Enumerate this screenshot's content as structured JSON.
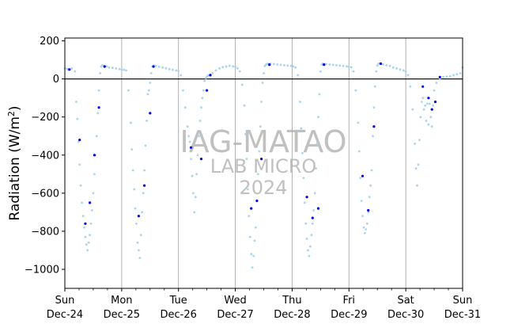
{
  "chart_data": {
    "type": "scatter",
    "title": "",
    "xlabel": "",
    "ylabel": "Radiation (W/m²)",
    "ylabel_base": "Radiation (W/m",
    "ylabel_sup": "2",
    "ylabel_end": ")",
    "x_ticks": [
      {
        "day": "Sun",
        "date": "Dec-24",
        "t": 0
      },
      {
        "day": "Mon",
        "date": "Dec-25",
        "t": 1
      },
      {
        "day": "Tue",
        "date": "Dec-26",
        "t": 2
      },
      {
        "day": "Wed",
        "date": "Dec-27",
        "t": 3
      },
      {
        "day": "Thu",
        "date": "Dec-28",
        "t": 4
      },
      {
        "day": "Fri",
        "date": "Dec-29",
        "t": 5
      },
      {
        "day": "Sat",
        "date": "Dec-30",
        "t": 6
      },
      {
        "day": "Sun",
        "date": "Dec-31",
        "t": 7
      }
    ],
    "xlim": [
      0,
      7
    ],
    "ylim": [
      -1100,
      215
    ],
    "y_ticks": [
      200,
      0,
      -200,
      -400,
      -600,
      -800,
      -1000
    ],
    "zero_line": 0,
    "grid": "vertical at day boundaries",
    "watermark": {
      "line1": "IAG-MATAO",
      "line2": "LAB MICRO",
      "line3": "2024"
    },
    "colors": {
      "minute_points": "#a8d4ec",
      "hourly_points": "#0000ee",
      "grid": "#b0b0b0",
      "zero_line": "#000000"
    },
    "series": [
      {
        "name": "",
        "style": "light",
        "x": [
          0.0,
          0.04,
          0.08,
          0.12,
          0.18,
          0.2,
          0.22,
          0.24,
          0.26,
          0.28,
          0.3,
          0.32,
          0.34,
          0.36,
          0.38,
          0.4,
          0.42,
          0.44,
          0.46,
          0.48,
          0.5,
          0.52,
          0.54,
          0.56,
          0.58,
          0.6,
          0.62,
          0.64,
          0.66,
          0.68,
          0.7,
          0.74,
          0.78,
          0.84,
          0.9,
          0.96,
          1.0,
          1.04,
          1.08,
          1.12,
          1.16,
          1.18,
          1.2,
          1.22,
          1.24,
          1.26,
          1.28,
          1.3,
          1.32,
          1.34,
          1.36,
          1.38,
          1.4,
          1.42,
          1.44,
          1.46,
          1.48,
          1.5,
          1.52,
          1.54,
          1.56,
          1.6,
          1.66,
          1.72,
          1.78,
          1.84,
          1.9,
          1.96,
          2.0,
          2.04,
          2.08,
          2.12,
          2.16,
          2.18,
          2.2,
          2.22,
          2.24,
          2.26,
          2.28,
          2.3,
          2.32,
          2.34,
          2.36,
          2.38,
          2.4,
          2.42,
          2.44,
          2.46,
          2.48,
          2.5,
          2.52,
          2.54,
          2.56,
          2.6,
          2.66,
          2.72,
          2.78,
          2.84,
          2.9,
          2.96,
          3.0,
          3.04,
          3.08,
          3.12,
          3.16,
          3.18,
          3.2,
          3.22,
          3.24,
          3.26,
          3.28,
          3.3,
          3.32,
          3.34,
          3.36,
          3.38,
          3.4,
          3.42,
          3.44,
          3.46,
          3.48,
          3.5,
          3.52,
          3.54,
          3.56,
          3.58,
          3.62,
          3.68,
          3.74,
          3.8,
          3.86,
          3.92,
          3.98,
          4.02,
          4.06,
          4.1,
          4.14,
          4.16,
          4.18,
          4.2,
          4.22,
          4.24,
          4.26,
          4.28,
          4.3,
          4.32,
          4.34,
          4.36,
          4.38,
          4.4,
          4.42,
          4.44,
          4.46,
          4.48,
          4.5,
          4.52,
          4.54,
          4.56,
          4.6,
          4.66,
          4.72,
          4.78,
          4.84,
          4.9,
          4.96,
          5.0,
          5.04,
          5.08,
          5.12,
          5.16,
          5.18,
          5.2,
          5.22,
          5.24,
          5.26,
          5.28,
          5.3,
          5.32,
          5.34,
          5.36,
          5.38,
          5.4,
          5.42,
          5.44,
          5.46,
          5.48,
          5.5,
          5.52,
          5.54,
          5.56,
          5.6,
          5.66,
          5.72,
          5.78,
          5.84,
          5.9,
          5.96,
          6.0,
          6.04,
          6.08,
          6.12,
          6.16,
          6.18,
          6.2,
          6.22,
          6.24,
          6.26,
          6.28,
          6.3,
          6.32,
          6.34,
          6.36,
          6.38,
          6.4,
          6.42,
          6.44,
          6.46,
          6.48,
          6.5,
          6.54,
          6.6,
          6.66,
          6.72,
          6.78,
          6.84,
          6.9,
          6.96,
          7.0
        ],
        "y": [
          55,
          52,
          50,
          55,
          40,
          -120,
          -210,
          -330,
          -450,
          -560,
          -650,
          -720,
          -780,
          -830,
          -870,
          -900,
          -860,
          -820,
          -760,
          -690,
          -600,
          -500,
          -400,
          -300,
          -180,
          -60,
          30,
          65,
          72,
          70,
          68,
          66,
          60,
          58,
          55,
          52,
          50,
          48,
          45,
          -60,
          -230,
          -370,
          -480,
          -580,
          -680,
          -760,
          -860,
          -900,
          -940,
          -820,
          -700,
          -600,
          -480,
          -350,
          -220,
          -80,
          -60,
          -20,
          30,
          65,
          70,
          68,
          64,
          60,
          56,
          52,
          48,
          45,
          42,
          20,
          -60,
          -150,
          -250,
          -300,
          -330,
          -420,
          -510,
          -600,
          -700,
          -620,
          -500,
          -400,
          -300,
          -220,
          -150,
          -100,
          -60,
          -10,
          5,
          12,
          18,
          20,
          22,
          30,
          45,
          55,
          62,
          66,
          68,
          66,
          64,
          55,
          40,
          -30,
          -140,
          -290,
          -420,
          -580,
          -720,
          -830,
          -920,
          -990,
          -930,
          -850,
          -780,
          -640,
          -500,
          -380,
          -250,
          -120,
          -20,
          30,
          68,
          75,
          78,
          80,
          80,
          78,
          76,
          74,
          72,
          70,
          68,
          66,
          60,
          20,
          -120,
          -260,
          -390,
          -520,
          -650,
          -760,
          -840,
          -900,
          -930,
          -880,
          -820,
          -760,
          -690,
          -600,
          -470,
          -340,
          -200,
          -80,
          40,
          75,
          80,
          80,
          78,
          76,
          74,
          72,
          70,
          68,
          66,
          64,
          62,
          40,
          -60,
          -230,
          -380,
          -520,
          -640,
          -720,
          -780,
          -810,
          -790,
          -760,
          -700,
          -620,
          -560,
          -480,
          -300,
          -150,
          -40,
          40,
          70,
          80,
          82,
          80,
          76,
          72,
          68,
          60,
          55,
          50,
          45,
          40,
          20,
          -40,
          -160,
          -340,
          -470,
          -560,
          -450,
          -320,
          -200,
          -120,
          -100,
          -160,
          -140,
          -220,
          -130,
          -240,
          -130,
          -200,
          -250,
          -140,
          -60,
          -20,
          0,
          10,
          12,
          14,
          20,
          25,
          30,
          60
        ]
      },
      {
        "name": "",
        "style": "dark",
        "x": [
          0.08,
          0.26,
          0.36,
          0.44,
          0.52,
          0.6,
          0.7,
          1.3,
          1.4,
          1.5,
          1.56,
          2.22,
          2.4,
          2.5,
          2.56,
          3.28,
          3.38,
          3.46,
          3.6,
          4.26,
          4.36,
          4.46,
          4.56,
          5.24,
          5.34,
          5.44,
          5.56,
          6.3,
          6.4,
          6.46,
          6.52,
          6.6
        ],
        "y": [
          50,
          -320,
          -760,
          -650,
          -400,
          -150,
          65,
          -720,
          -560,
          -180,
          65,
          -360,
          -420,
          -60,
          20,
          -680,
          -640,
          -420,
          75,
          -620,
          -730,
          -680,
          75,
          -510,
          -690,
          -250,
          80,
          -40,
          -100,
          -160,
          -120,
          10
        ]
      }
    ]
  }
}
